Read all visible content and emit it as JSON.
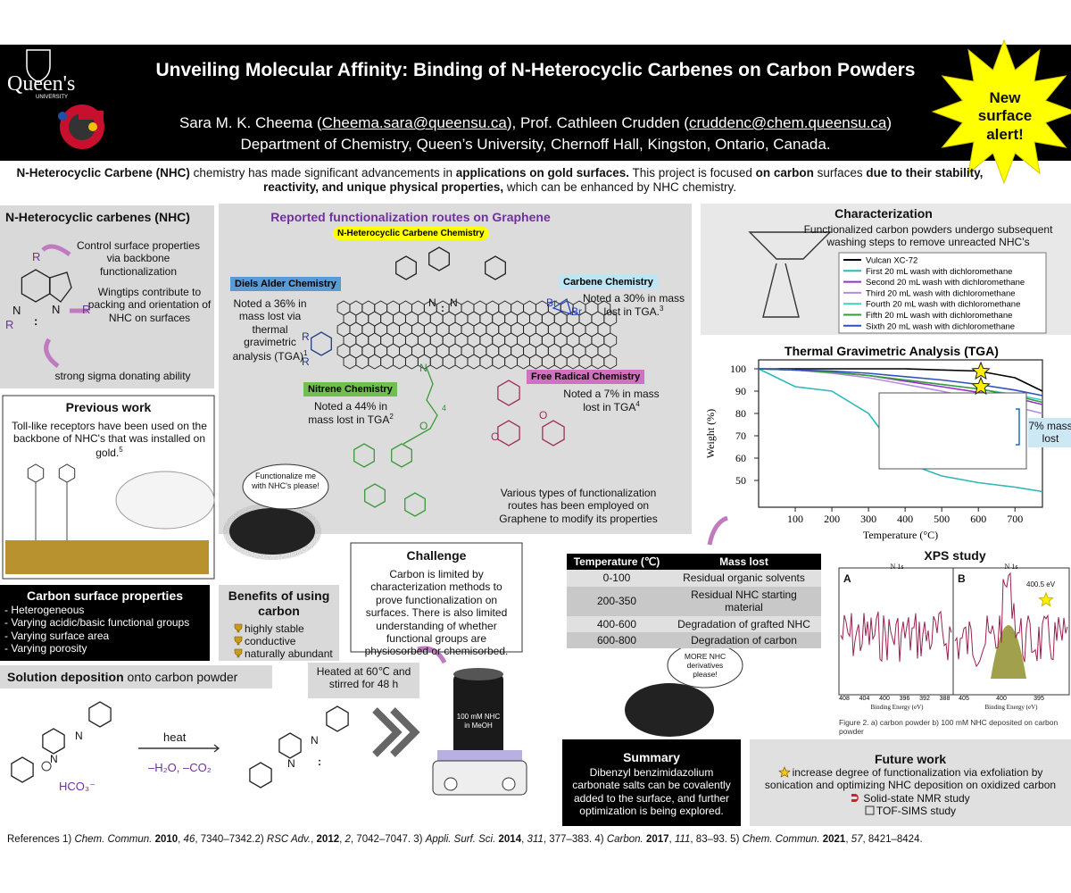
{
  "header": {
    "institution": "Queen's",
    "institution_sub": "UNIVERSITY",
    "title": "Unveiling Molecular Affinity: Binding of N-Heterocyclic Carbenes on Carbon Powders",
    "authors": [
      "Sara M. K. Cheema (",
      "Cheema.sara@queensu.ca",
      "), Prof. Cathleen Crudden (",
      "cruddenc@chem.queensu.ca",
      ")"
    ],
    "department": "Department of Chemistry, Queen’s University, Chernoff Hall, Kingston, Ontario, Canada.",
    "badge": "New surface alert!"
  },
  "intro": [
    {
      "text": "N-Heterocyclic Carbene (NHC)",
      "style": "bold"
    },
    {
      "text": " chemistry has made significant advancements in "
    },
    {
      "text": "applications on gold surfaces.",
      "style": "bold"
    },
    {
      "text": " This project is focused "
    },
    {
      "text": "on carbon",
      "style": "bold"
    },
    {
      "text": " surfaces "
    },
    {
      "text": "due to their stability, reactivity, and unique physical properties,",
      "style": "bold"
    },
    {
      "text": " which can be enhanced by NHC chemistry."
    }
  ],
  "nhc": {
    "title": "N-Heterocyclic carbenes (NHC)",
    "notes": [
      "Control surface properties via backbone functionalization",
      "Wingtips contribute to packing and orientation of NHC on surfaces",
      "strong sigma donating ability"
    ],
    "atoms": {
      "r": "R",
      "n": "N",
      "lone_pair": ":"
    }
  },
  "previous": {
    "title": "Previous work",
    "text": "Toll-like receptors have been used on the backbone of NHC's that was installed on gold.",
    "ref": "5"
  },
  "routes": {
    "title": "Reported functionalization routes on Graphene",
    "badge": "N-Heterocyclic Carbene Chemistry",
    "items": [
      {
        "name": "Diels Alder Chemistry",
        "note": "Noted a 36% in mass lost via thermal gravimetric analysis (TGA)",
        "ref": "1"
      },
      {
        "name": "Carbene Chemistry",
        "note": "Noted a 30% in mass lost in TGA.",
        "ref": "3"
      },
      {
        "name": "Nitrene Chemistry",
        "note": "Noted a 44% in mass lost in TGA",
        "ref": "2"
      },
      {
        "name": "Free Radical Chemistry",
        "note": "Noted a 7% in mass lost in TGA",
        "ref": "4"
      }
    ],
    "caption": "Various types of functionalization routes has been employed on Graphene to modify its properties",
    "bubble": "Functionalize me with NHC's please!",
    "atoms": {
      "n": "N",
      "lone_pair": ":",
      "br": "Br",
      "r": "R",
      "o": "O",
      "chain": "4"
    }
  },
  "carbon_surface": {
    "title": "Carbon surface properties",
    "items": [
      "- Heterogeneous",
      "- Varying acidic/basic functional groups",
      "- Varying surface area",
      "- Varying porosity"
    ]
  },
  "benefits": {
    "title": "Benefits of using carbon",
    "items": [
      "highly stable",
      "conductive",
      "naturally abundant"
    ]
  },
  "deposition": {
    "heading": [
      {
        "text": "Solution deposition",
        "style": "bold"
      },
      {
        "text": " onto carbon powder"
      }
    ],
    "conditions": "Heated at 60℃ and stirred for 48 h",
    "reagent": "heat",
    "byproducts": "–H₂O, –CO₂",
    "counterion": "HCO₃⁻",
    "atoms": {
      "n": "N",
      "lone_pair": ":"
    },
    "beaker": "100 mM NHC in MeOH"
  },
  "challenge": {
    "title": "Challenge",
    "text": "Carbon is limited by characterization methods to prove functionalization on surfaces. There is also limited understanding of whether functional groups are physiosorbed or chemisorbed.",
    "bubble": "MORE NHC derivatives please!"
  },
  "table": {
    "header": [
      "Temperature (℃)",
      "Mass lost"
    ],
    "rows": [
      [
        "0-100",
        "Residual organic solvents"
      ],
      [
        "200-350",
        "Residual NHC starting material"
      ],
      [
        "400-600",
        "Degradation of grafted NHC"
      ],
      [
        "600-800",
        "Degradation of carbon"
      ]
    ]
  },
  "characterization": {
    "title": "Characterization",
    "text": "Functionalized carbon powders undergo subsequent washing steps to remove unreacted NHC’s",
    "callout": "7% mass lost"
  },
  "chart_data": {
    "type": "line",
    "title": "Thermal Gravimetric Analysis (TGA)",
    "xlabel": "Temperature (°C)",
    "ylabel": "Weight (%)",
    "x": [
      0,
      100,
      200,
      300,
      400,
      500,
      600,
      700,
      775
    ],
    "series": [
      {
        "name": "Vulcan XC-72",
        "color": "#000000",
        "values": [
          100,
          100,
          100,
          100,
          100,
          99.5,
          99,
          96,
          90
        ]
      },
      {
        "name": "First 20 mL wash with dichloromethane",
        "color": "#2ab8b8",
        "values": [
          100,
          92,
          90,
          80,
          58,
          52,
          49,
          47,
          45
        ]
      },
      {
        "name": "Second 20 mL wash with dichloromethane",
        "color": "#9b30c8",
        "values": [
          100,
          99.5,
          98.5,
          97,
          94.5,
          92,
          89.5,
          87,
          84
        ]
      },
      {
        "name": "Third 20 mL wash with dichloromethane",
        "color": "#b48be0",
        "values": [
          100,
          99.5,
          98,
          96,
          93,
          90,
          86.5,
          83,
          80
        ]
      },
      {
        "name": "Fourth 20 mL wash with dichloromethane",
        "color": "#40d0c0",
        "values": [
          100,
          99.5,
          98.5,
          97,
          95,
          93,
          91,
          88.5,
          86
        ]
      },
      {
        "name": "Fifth 20 mL wash with dichloromethane",
        "color": "#3a9a3a",
        "values": [
          100,
          99.5,
          98.5,
          97,
          95,
          93,
          91,
          88,
          85
        ]
      },
      {
        "name": "Sixth 20 mL wash with dichloromethane",
        "color": "#3050c0",
        "values": [
          100,
          99.5,
          99,
          98,
          96.5,
          95,
          93,
          90.5,
          88
        ]
      }
    ],
    "xlim": [
      0,
      775
    ],
    "ylim": [
      38,
      104
    ],
    "xticks": [
      100,
      200,
      300,
      400,
      500,
      600,
      700
    ],
    "yticks": [
      50,
      60,
      70,
      80,
      90,
      100
    ]
  },
  "xps": {
    "title": "XPS study",
    "panels": [
      {
        "label": "A",
        "title": "N 1s",
        "ticks": [
          "408",
          "404",
          "400",
          "396",
          "392",
          "388"
        ]
      },
      {
        "label": "B",
        "title": "N 1s",
        "ticks": [
          "405",
          "400",
          "395"
        ]
      }
    ],
    "peak": "400.5 eV",
    "xlabel": "Binding Energy (eV)",
    "caption": "Figure 2. a) carbon powder b) 100 mM NHC deposited on carbon powder"
  },
  "summary": {
    "title": "Summary",
    "text": "Dibenzyl benzimidazolium carbonate salts can be covalently added to the surface, and further optimization is being explored."
  },
  "future": {
    "title": "Future work",
    "items": [
      "increase degree of functionalization via exfoliation by sonication and optimizing NHC deposition on oxidized carbon",
      "Solid-state NMR study",
      "TOF-SIMS study"
    ]
  },
  "references": [
    {
      "text": "References 1) "
    },
    {
      "text": "Chem. Commun.",
      "style": "italic"
    },
    {
      "text": " "
    },
    {
      "text": "2010",
      "style": "bold"
    },
    {
      "text": ", "
    },
    {
      "text": "46",
      "style": "italic"
    },
    {
      "text": ", 7340–7342.2) "
    },
    {
      "text": "RSC Adv.",
      "style": "italic"
    },
    {
      "text": ", "
    },
    {
      "text": "2012",
      "style": "bold"
    },
    {
      "text": ", "
    },
    {
      "text": "2",
      "style": "italic"
    },
    {
      "text": ", 7042–7047. 3) "
    },
    {
      "text": "Appli. Surf. Sci.",
      "style": "italic"
    },
    {
      "text": " "
    },
    {
      "text": "2014",
      "style": "bold"
    },
    {
      "text": ", "
    },
    {
      "text": "311",
      "style": "italic"
    },
    {
      "text": ", 377–383. 4) "
    },
    {
      "text": "Carbon.",
      "style": "italic"
    },
    {
      "text": " "
    },
    {
      "text": "2017",
      "style": "bold"
    },
    {
      "text": ", "
    },
    {
      "text": "111",
      "style": "italic"
    },
    {
      "text": ", 83–93. 5) "
    },
    {
      "text": "Chem. Commun.",
      "style": "italic"
    },
    {
      "text": " "
    },
    {
      "text": "2021",
      "style": "bold"
    },
    {
      "text": ", "
    },
    {
      "text": "57",
      "style": "italic"
    },
    {
      "text": ", 8421–8424."
    }
  ]
}
